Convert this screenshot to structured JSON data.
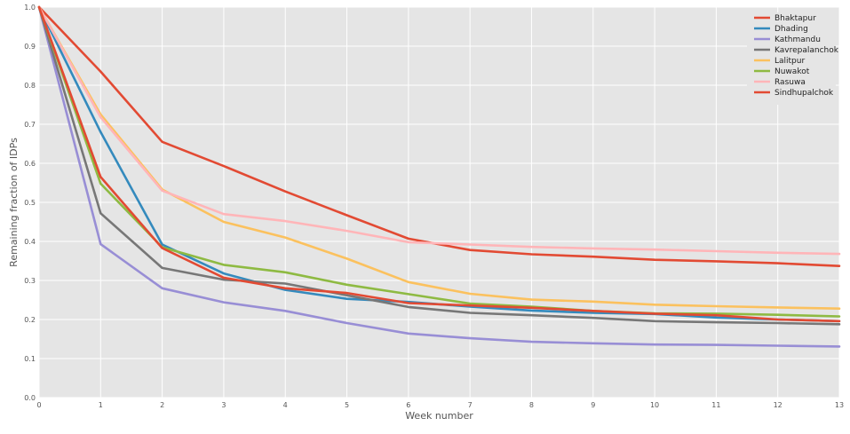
{
  "chart_data": {
    "type": "line",
    "title": "",
    "xlabel": "Week number",
    "ylabel": "Remaining fraction of IDPs",
    "xlim": [
      0,
      13
    ],
    "ylim": [
      0,
      1.0
    ],
    "x_ticks": [
      "0",
      "1",
      "2",
      "3",
      "4",
      "5",
      "6",
      "7",
      "8",
      "9",
      "10",
      "11",
      "12",
      "13"
    ],
    "y_ticks": [
      "0.0",
      "0.1",
      "0.2",
      "0.3",
      "0.4",
      "0.5",
      "0.6",
      "0.7",
      "0.8",
      "0.9",
      "1.0"
    ],
    "grid": true,
    "legend_position": "top-right",
    "x": [
      0,
      1,
      2,
      3,
      4,
      5,
      6,
      7,
      8,
      9,
      10,
      11,
      12,
      13
    ],
    "series": [
      {
        "name": "Bhaktapur",
        "color": "#e24a33",
        "values": [
          1.0,
          0.835,
          0.655,
          0.593,
          0.528,
          0.467,
          0.407,
          0.378,
          0.367,
          0.361,
          0.353,
          0.349,
          0.344,
          0.337
        ]
      },
      {
        "name": "Dhading",
        "color": "#348abd",
        "values": [
          1.0,
          0.68,
          0.392,
          0.318,
          0.276,
          0.253,
          0.245,
          0.233,
          0.223,
          0.217,
          0.214,
          0.205,
          0.2,
          0.196
        ]
      },
      {
        "name": "Kathmandu",
        "color": "#988ed5",
        "values": [
          1.0,
          0.393,
          0.28,
          0.244,
          0.222,
          0.191,
          0.164,
          0.152,
          0.143,
          0.139,
          0.136,
          0.135,
          0.133,
          0.131
        ]
      },
      {
        "name": "Kavrepalanchok",
        "color": "#777777",
        "values": [
          1.0,
          0.472,
          0.332,
          0.302,
          0.292,
          0.262,
          0.232,
          0.217,
          0.211,
          0.204,
          0.196,
          0.193,
          0.191,
          0.188
        ]
      },
      {
        "name": "Lalitpur",
        "color": "#fbc15e",
        "values": [
          1.0,
          0.725,
          0.533,
          0.45,
          0.41,
          0.356,
          0.296,
          0.266,
          0.251,
          0.246,
          0.238,
          0.234,
          0.231,
          0.228
        ]
      },
      {
        "name": "Nuwakot",
        "color": "#8eba42",
        "values": [
          1.0,
          0.548,
          0.385,
          0.34,
          0.321,
          0.289,
          0.265,
          0.241,
          0.233,
          0.222,
          0.216,
          0.215,
          0.212,
          0.208
        ]
      },
      {
        "name": "Rasuwa",
        "color": "#ffb5b8",
        "values": [
          1.0,
          0.718,
          0.53,
          0.47,
          0.452,
          0.427,
          0.398,
          0.392,
          0.386,
          0.382,
          0.379,
          0.375,
          0.371,
          0.368
        ]
      },
      {
        "name": "Sindhupalchok",
        "color": "#e24a33",
        "values": [
          1.0,
          0.565,
          0.383,
          0.307,
          0.28,
          0.268,
          0.242,
          0.236,
          0.23,
          0.222,
          0.215,
          0.211,
          0.2,
          0.196
        ]
      }
    ]
  }
}
